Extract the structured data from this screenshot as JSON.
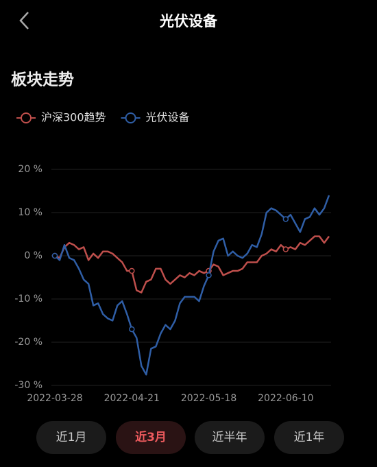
{
  "header": {
    "title": "光伏设备"
  },
  "section_title": "板块走势",
  "chart_data": {
    "type": "line",
    "categories": [
      "2022-03-28",
      null,
      null,
      null,
      null,
      null,
      null,
      null,
      null,
      null,
      null,
      null,
      null,
      null,
      null,
      null,
      "2022-04-21",
      null,
      null,
      null,
      null,
      null,
      null,
      null,
      null,
      null,
      null,
      null,
      null,
      null,
      null,
      null,
      "2022-05-18",
      null,
      null,
      null,
      null,
      null,
      null,
      null,
      null,
      null,
      null,
      null,
      null,
      null,
      null,
      null,
      "2022-06-10",
      null,
      null,
      null,
      null,
      null,
      null,
      null,
      null,
      null
    ],
    "series": [
      {
        "name": "沪深300趋势",
        "color": "#bf4f4c",
        "values": [
          0,
          -0.5,
          2,
          3,
          2.5,
          1.5,
          2,
          -1,
          0.5,
          -0.5,
          1,
          1,
          0.5,
          -0.5,
          -1.5,
          -3.5,
          -3.5,
          -8,
          -8.5,
          -6,
          -5.5,
          -3,
          -3,
          -5.5,
          -6.5,
          -5.5,
          -4.5,
          -5,
          -4,
          -4.5,
          -3.5,
          -4,
          -3.5,
          -2,
          -2.5,
          -4.5,
          -4,
          -3.5,
          -3.5,
          -3,
          -1.5,
          -1.5,
          -1.5,
          0,
          0.5,
          1.5,
          1,
          2.5,
          1.5,
          2,
          1.5,
          3,
          2.5,
          3.5,
          4.5,
          4.5,
          3,
          4.5
        ]
      },
      {
        "name": "光伏设备",
        "color": "#2f5ea6",
        "values": [
          0,
          -1,
          2.5,
          -0.5,
          -1,
          -3,
          -5.5,
          -6.5,
          -11.5,
          -11,
          -13.5,
          -14.5,
          -15,
          -11.5,
          -10.5,
          -13.5,
          -17,
          -19,
          -25.5,
          -27.5,
          -21.5,
          -21,
          -18,
          -16,
          -17,
          -15,
          -11,
          -9.5,
          -9.5,
          -9.5,
          -10.5,
          -7,
          -4.5,
          1,
          3.5,
          4,
          0,
          1,
          0,
          -0.5,
          0.5,
          2.5,
          2,
          5,
          10,
          11,
          10.5,
          9.5,
          8.5,
          9.5,
          7.5,
          5.5,
          8.5,
          9,
          11,
          9.5,
          11,
          14
        ]
      }
    ],
    "ylim": [
      -30,
      20
    ],
    "yticks": [
      {
        "value": -30,
        "label": "-30 %"
      },
      {
        "value": -20,
        "label": "-20 %"
      },
      {
        "value": -10,
        "label": "-10 %"
      },
      {
        "value": 0,
        "label": "0 %"
      },
      {
        "value": 10,
        "label": "10 %"
      },
      {
        "value": 20,
        "label": "20 %"
      }
    ],
    "grid": true
  },
  "range_buttons": {
    "items": [
      "近1月",
      "近3月",
      "近半年",
      "近1年"
    ],
    "active": 1
  }
}
